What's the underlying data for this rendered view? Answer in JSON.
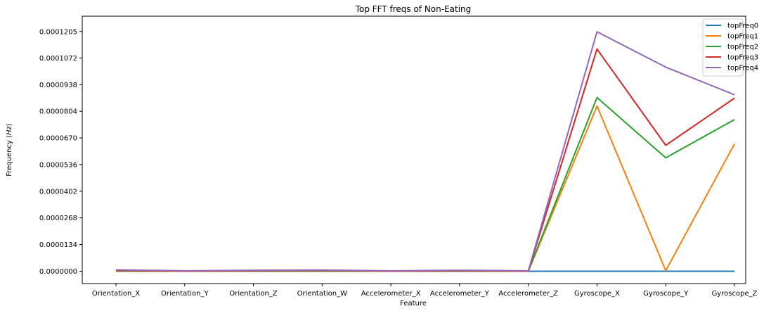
{
  "chart_data": {
    "type": "line",
    "title": "Top FFT freqs of Non-Eating",
    "xlabel": "Feature",
    "ylabel": "Frequency (Hz)",
    "ylabel_prefix": "Frequency (",
    "ylabel_unit": "Hz",
    "ylabel_suffix": ")",
    "categories": [
      "Orientation_X",
      "Orientation_Y",
      "Orientation_Z",
      "Orientation_W",
      "Accelerometer_X",
      "Accelerometer_Y",
      "Accelerometer_Z",
      "Gyroscope_X",
      "Gyroscope_Y",
      "Gyroscope_Z"
    ],
    "yticks": [
      "0.0000000",
      "0.0000134",
      "0.0000268",
      "0.0000402",
      "0.0000536",
      "0.0000670",
      "0.0000804",
      "0.0000938",
      "0.0001072",
      "0.0001205"
    ],
    "ylim": [
      -6.2e-06,
      0.0001282
    ],
    "legend_position": "top-right",
    "grid": false,
    "series": [
      {
        "name": "topFreq0",
        "color": "#1f77b4",
        "values": [
          0.0,
          0.0,
          0.0,
          0.0,
          0.0,
          0.0,
          0.0,
          0.0,
          0.0,
          0.0
        ]
      },
      {
        "name": "topFreq1",
        "color": "#ff7f0e",
        "values": [
          1e-07,
          0.0,
          1e-07,
          1e-07,
          0.0,
          1e-07,
          0.0,
          8.3e-05,
          3e-07,
          6.4e-05
        ]
      },
      {
        "name": "topFreq2",
        "color": "#2ca02c",
        "values": [
          2e-07,
          1e-07,
          2e-07,
          2e-07,
          1e-07,
          2e-07,
          1e-07,
          8.73e-05,
          5.7e-05,
          7.62e-05
        ]
      },
      {
        "name": "topFreq3",
        "color": "#d62728",
        "values": [
          4e-07,
          1e-07,
          3e-07,
          4e-07,
          1e-07,
          3e-07,
          1e-07,
          0.0001117,
          6.33e-05,
          8.7e-05
        ]
      },
      {
        "name": "topFreq4",
        "color": "#9467bd",
        "values": [
          7e-07,
          2e-07,
          5e-07,
          6e-07,
          2e-07,
          5e-07,
          2e-07,
          0.0001204,
          0.0001026,
          8.87e-05
        ]
      }
    ]
  }
}
